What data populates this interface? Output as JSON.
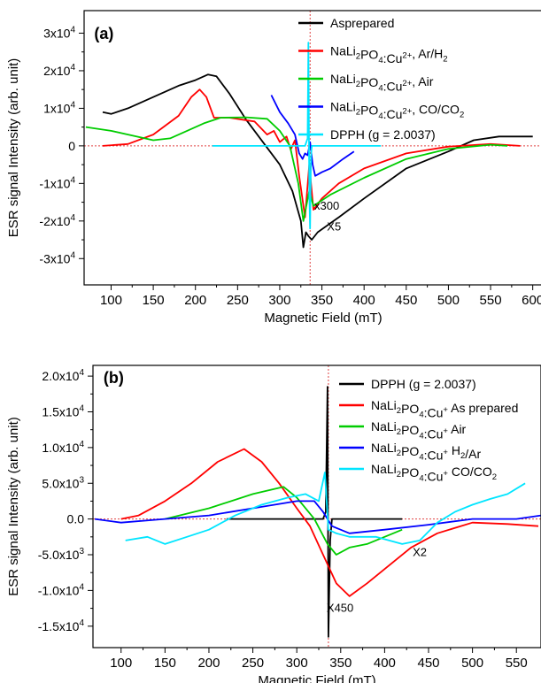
{
  "chart_data": [
    {
      "panel": "(a)",
      "type": "line",
      "xlabel": "Magnetic Field (mT)",
      "ylabel": "ESR signal Intensity (arb. unit)",
      "xlim": [
        68,
        635
      ],
      "ylim": [
        -37000,
        36000
      ],
      "xticks": [
        100,
        150,
        200,
        250,
        300,
        350,
        400,
        450,
        500,
        550,
        600
      ],
      "xtick_labels": [
        "100",
        "150",
        "200",
        "250",
        "300",
        "350",
        "400",
        "450",
        "500",
        "550",
        "600"
      ],
      "yticks": [
        30000,
        20000,
        10000,
        0,
        -10000,
        -20000,
        -30000
      ],
      "ytick_labels": [
        {
          "mant": "3x10",
          "exp": "4"
        },
        {
          "mant": "2x10",
          "exp": "4"
        },
        {
          "mant": "1x10",
          "exp": "4"
        },
        {
          "mant": "0",
          "exp": ""
        },
        {
          "mant": "-1x10",
          "exp": "4"
        },
        {
          "mant": "-2x10",
          "exp": "4"
        },
        {
          "mant": "-3x10",
          "exp": "4"
        }
      ],
      "legend_position": "top-right",
      "series": [
        {
          "name": "Asprepared",
          "legend": [
            "Asprepared"
          ],
          "color": "#000000",
          "points": [
            [
              90,
              9000
            ],
            [
              100,
              8500
            ],
            [
              120,
              10000
            ],
            [
              150,
              13000
            ],
            [
              180,
              16000
            ],
            [
              200,
              17500
            ],
            [
              215,
              19000
            ],
            [
              225,
              18500
            ],
            [
              240,
              14000
            ],
            [
              260,
              7000
            ],
            [
              280,
              1000
            ],
            [
              300,
              -5000
            ],
            [
              315,
              -12000
            ],
            [
              325,
              -20000
            ],
            [
              328,
              -27000
            ],
            [
              331,
              -23000
            ],
            [
              334,
              -24000
            ],
            [
              338,
              -25000
            ],
            [
              345,
              -23000
            ],
            [
              370,
              -19000
            ],
            [
              400,
              -14000
            ],
            [
              450,
              -6000
            ],
            [
              500,
              -1500
            ],
            [
              530,
              1500
            ],
            [
              560,
              2500
            ],
            [
              590,
              2500
            ],
            [
              600,
              2500
            ]
          ]
        },
        {
          "name": "NaLi2PO4:Cu2+, Ar/H2",
          "legend": [
            "NaLi",
            "2",
            "PO",
            "4",
            ":Cu",
            "2+",
            ", Ar/H",
            "2"
          ],
          "color": "#ff0000",
          "points": [
            [
              90,
              0
            ],
            [
              120,
              500
            ],
            [
              150,
              3000
            ],
            [
              180,
              8000
            ],
            [
              195,
              13000
            ],
            [
              205,
              15000
            ],
            [
              213,
              13000
            ],
            [
              222,
              7500
            ],
            [
              240,
              7500
            ],
            [
              270,
              6500
            ],
            [
              285,
              3000
            ],
            [
              293,
              4000
            ],
            [
              300,
              1000
            ],
            [
              308,
              2500
            ],
            [
              313,
              -1000
            ],
            [
              318,
              1500
            ],
            [
              323,
              -8000
            ],
            [
              330,
              -19000
            ],
            [
              335,
              -5000
            ],
            [
              340,
              -17000
            ],
            [
              350,
              -14000
            ],
            [
              370,
              -10000
            ],
            [
              400,
              -6000
            ],
            [
              450,
              -2000
            ],
            [
              500,
              -200
            ],
            [
              550,
              500
            ],
            [
              585,
              0
            ]
          ]
        },
        {
          "name": "NaLi2PO4:Cu2+, Air",
          "legend": [
            "NaLi",
            "2",
            "PO",
            "4",
            ":Cu",
            "2+",
            ", Air"
          ],
          "color": "#00cc00",
          "points": [
            [
              70,
              5000
            ],
            [
              100,
              4000
            ],
            [
              150,
              1500
            ],
            [
              170,
              2000
            ],
            [
              190,
              4000
            ],
            [
              210,
              6000
            ],
            [
              230,
              7500
            ],
            [
              260,
              7600
            ],
            [
              285,
              7200
            ],
            [
              300,
              4000
            ],
            [
              312,
              0
            ],
            [
              322,
              -10000
            ],
            [
              328,
              -20000
            ],
            [
              335,
              -12000
            ],
            [
              340,
              -16000
            ],
            [
              360,
              -13000
            ],
            [
              400,
              -8500
            ],
            [
              450,
              -3500
            ],
            [
              500,
              -800
            ],
            [
              550,
              300
            ],
            [
              570,
              0
            ]
          ]
        },
        {
          "name": "NaLi2PO4:Cu2+, CO/CO2",
          "legend": [
            "NaLi",
            "2",
            "PO",
            "4",
            ":Cu",
            "2+",
            ", CO/CO",
            "2"
          ],
          "color": "#0000ff",
          "points": [
            [
              290,
              13500
            ],
            [
              300,
              9000
            ],
            [
              310,
              6000
            ],
            [
              318,
              3000
            ],
            [
              323,
              -2000
            ],
            [
              327,
              -3500
            ],
            [
              330,
              -2000
            ],
            [
              333,
              -2500
            ],
            [
              336,
              1000
            ],
            [
              339,
              -5000
            ],
            [
              342,
              -8000
            ],
            [
              350,
              -7000
            ],
            [
              360,
              -6000
            ],
            [
              375,
              -3500
            ],
            [
              388,
              -1500
            ]
          ]
        },
        {
          "name": "DPPH (g = 2.0037)",
          "legend": [
            "DPPH (g = 2.0037)"
          ],
          "color": "#00e5ff",
          "points": [
            [
              220,
              0
            ],
            [
              320,
              0
            ],
            [
              330,
              0
            ],
            [
              333,
              2000
            ],
            [
              334,
              27500
            ],
            [
              335,
              -12000
            ],
            [
              336,
              -22000
            ],
            [
              337,
              -3000
            ],
            [
              338,
              0
            ],
            [
              350,
              0
            ],
            [
              420,
              0
            ]
          ]
        }
      ],
      "annotations": [
        {
          "text": "(a)",
          "x": 80,
          "y": 28500,
          "bold": true
        },
        {
          "text": "x300",
          "x": 341,
          "y": -17000
        },
        {
          "text": "X5",
          "x": 356,
          "y": -22500
        }
      ],
      "reference_lines": {
        "x": 336,
        "y": 0,
        "color": "#e04040"
      }
    },
    {
      "panel": "(b)",
      "type": "line",
      "xlabel": "Magnetic Field (mT)",
      "ylabel": "ESR signal Intensity (arb. unit)",
      "xlim": [
        68,
        578
      ],
      "ylim": [
        -18000,
        21500
      ],
      "xticks": [
        100,
        150,
        200,
        250,
        300,
        350,
        400,
        450,
        500,
        550
      ],
      "xtick_labels": [
        "100",
        "150",
        "200",
        "250",
        "300",
        "350",
        "400",
        "450",
        "500",
        "550"
      ],
      "yticks": [
        20000,
        15000,
        10000,
        5000,
        0,
        -5000,
        -10000,
        -15000
      ],
      "ytick_labels": [
        {
          "mant": "2.0x10",
          "exp": "4"
        },
        {
          "mant": "1.5x10",
          "exp": "4"
        },
        {
          "mant": "1.0x10",
          "exp": "4"
        },
        {
          "mant": "5.0x10",
          "exp": "3"
        },
        {
          "mant": "0.0",
          "exp": ""
        },
        {
          "mant": "-5.0x10",
          "exp": "3"
        },
        {
          "mant": "-1.0x10",
          "exp": "4"
        },
        {
          "mant": "-1.5x10",
          "exp": "4"
        }
      ],
      "legend_position": "top-right",
      "series": [
        {
          "name": "DPPH (g = 2.0037)",
          "legend": [
            "DPPH (g = 2.0037)"
          ],
          "color": "#000000",
          "points": [
            [
              220,
              0
            ],
            [
              330,
              0
            ],
            [
              333,
              1000
            ],
            [
              335,
              18500
            ],
            [
              336,
              -16500
            ],
            [
              338,
              -3000
            ],
            [
              340,
              0
            ],
            [
              350,
              0
            ],
            [
              420,
              0
            ]
          ]
        },
        {
          "name": "NaLi2PO4:Cu+ As prepared",
          "legend": [
            "NaLi",
            "2",
            "PO",
            "4",
            ":Cu",
            "+",
            " As prepared"
          ],
          "color": "#ff0000",
          "points": [
            [
              100,
              0
            ],
            [
              120,
              500
            ],
            [
              150,
              2500
            ],
            [
              180,
              5000
            ],
            [
              210,
              8000
            ],
            [
              240,
              9800
            ],
            [
              260,
              8000
            ],
            [
              280,
              5000
            ],
            [
              300,
              1500
            ],
            [
              315,
              -1000
            ],
            [
              330,
              -5000
            ],
            [
              345,
              -9000
            ],
            [
              360,
              -10800
            ],
            [
              380,
              -9000
            ],
            [
              400,
              -7000
            ],
            [
              430,
              -4000
            ],
            [
              460,
              -2000
            ],
            [
              500,
              -500
            ],
            [
              540,
              -700
            ],
            [
              575,
              -1000
            ]
          ]
        },
        {
          "name": "NaLi2PO4:Cu+ Air",
          "legend": [
            "NaLi",
            "2",
            "PO",
            "4",
            ":Cu",
            "+",
            " Air"
          ],
          "color": "#00cc00",
          "points": [
            [
              150,
              0
            ],
            [
              200,
              1500
            ],
            [
              250,
              3500
            ],
            [
              285,
              4500
            ],
            [
              300,
              3000
            ],
            [
              320,
              0
            ],
            [
              335,
              -3500
            ],
            [
              345,
              -5000
            ],
            [
              360,
              -4000
            ],
            [
              380,
              -3500
            ],
            [
              400,
              -2500
            ],
            [
              420,
              -1500
            ]
          ]
        },
        {
          "name": "NaLi2PO4:Cu+ H2/Ar",
          "legend": [
            "NaLi",
            "2",
            "PO",
            "4",
            ":Cu",
            "+",
            " H",
            "2",
            "/Ar"
          ],
          "color": "#0000ff",
          "points": [
            [
              70,
              0
            ],
            [
              100,
              -500
            ],
            [
              150,
              0
            ],
            [
              200,
              500
            ],
            [
              250,
              1500
            ],
            [
              300,
              2500
            ],
            [
              320,
              2500
            ],
            [
              330,
              1000
            ],
            [
              340,
              -1000
            ],
            [
              360,
              -2000
            ],
            [
              400,
              -1500
            ],
            [
              450,
              -800
            ],
            [
              500,
              0
            ],
            [
              550,
              0
            ],
            [
              578,
              500
            ]
          ]
        },
        {
          "name": "NaLi2PO4:Cu+ CO/CO2",
          "legend": [
            "NaLi",
            "2",
            "PO",
            "4",
            ":Cu",
            "+",
            " CO/CO",
            "2"
          ],
          "color": "#00e5ff",
          "points": [
            [
              105,
              -3000
            ],
            [
              130,
              -2500
            ],
            [
              150,
              -3500
            ],
            [
              175,
              -2500
            ],
            [
              200,
              -1500
            ],
            [
              230,
              500
            ],
            [
              260,
              2000
            ],
            [
              290,
              3000
            ],
            [
              310,
              3500
            ],
            [
              325,
              2500
            ],
            [
              332,
              6500
            ],
            [
              336,
              -1500
            ],
            [
              345,
              -2000
            ],
            [
              360,
              -2500
            ],
            [
              390,
              -2500
            ],
            [
              420,
              -3500
            ],
            [
              440,
              -3000
            ],
            [
              460,
              -500
            ],
            [
              480,
              1000
            ],
            [
              500,
              2000
            ],
            [
              520,
              2800
            ],
            [
              540,
              3500
            ],
            [
              560,
              5000
            ]
          ]
        }
      ],
      "annotations": [
        {
          "text": "(b)",
          "x": 80,
          "y": 19000,
          "bold": true
        },
        {
          "text": "X2",
          "x": 432,
          "y": -5200
        },
        {
          "text": "X450",
          "x": 334,
          "y": -13000
        }
      ],
      "reference_lines": {
        "x": 336,
        "y": 0,
        "color": "#e04040"
      }
    }
  ]
}
